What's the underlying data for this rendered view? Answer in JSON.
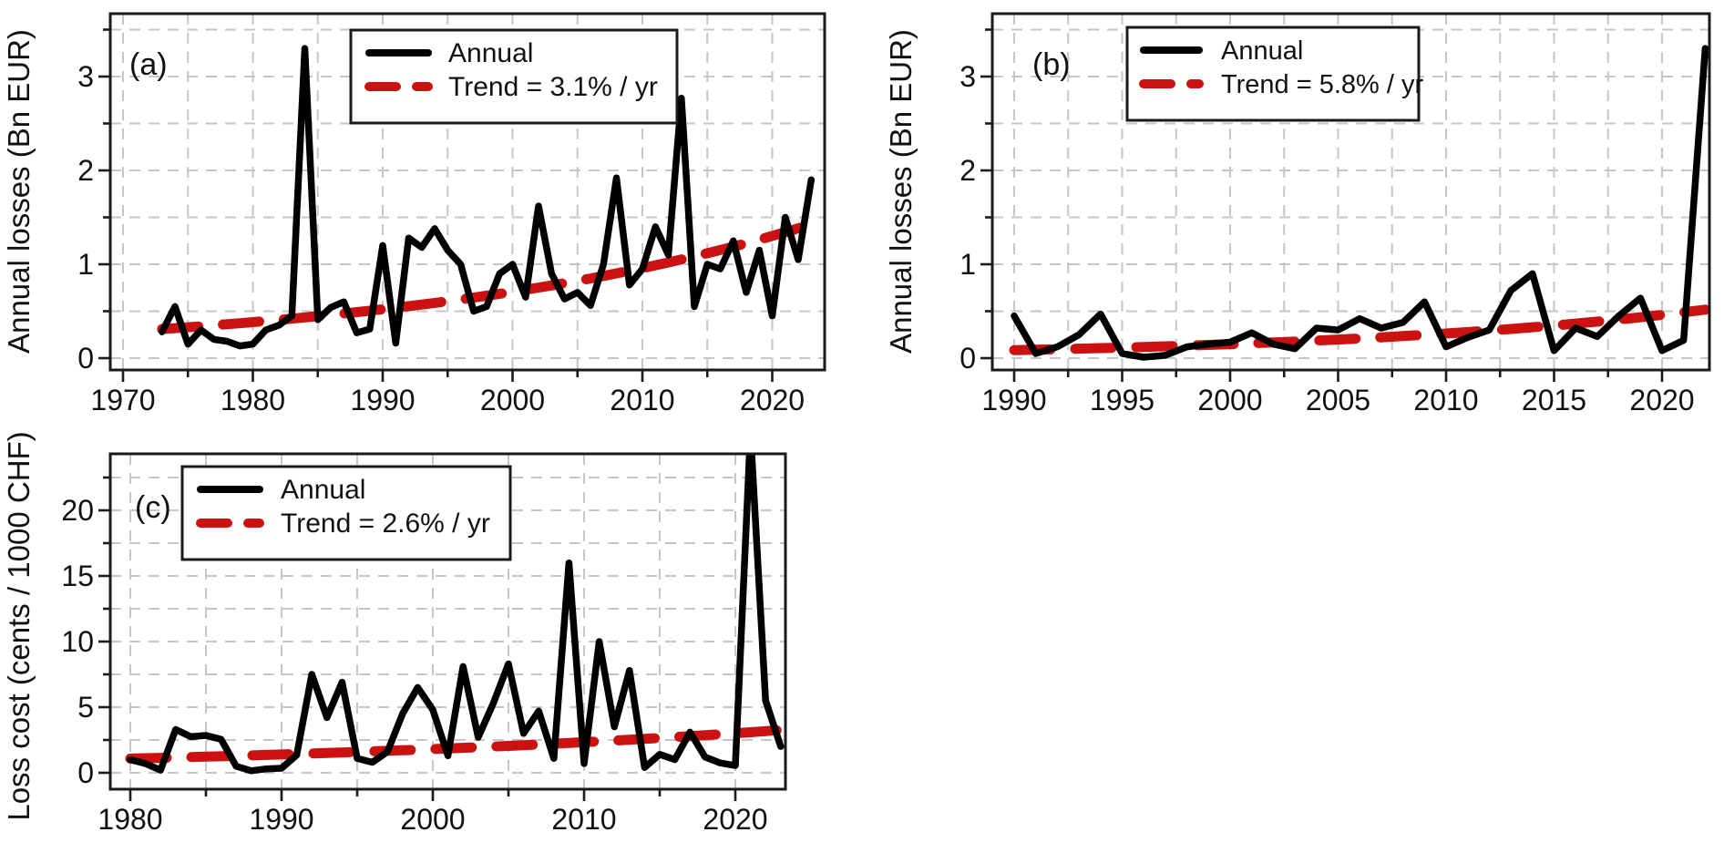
{
  "figure": {
    "description": "Three-panel line figure of annual hail losses with exponential trends",
    "background": "#ffffff"
  },
  "colors": {
    "annual_line": "#000000",
    "trend_line": "#cc1111",
    "grid": "#c6c6c6",
    "axis": "#1a1a1a",
    "legend_bg": "#ffffff",
    "legend_border": "#1a1a1a",
    "text": "#111111"
  },
  "chart_data": [
    {
      "id": "a",
      "type": "line",
      "panel_label": "(a)",
      "ylabel": "Annual losses (Bn EUR)",
      "xlabel": "",
      "legend": {
        "annual": "Annual",
        "trend": "Trend = 3.1% / yr"
      },
      "trend": {
        "rate_pct_per_yr": 3.1,
        "value_start": 0.31,
        "year_start": 1973,
        "year_end": 2023
      },
      "x": [
        1973,
        1974,
        1975,
        1976,
        1977,
        1978,
        1979,
        1980,
        1981,
        1982,
        1983,
        1984,
        1985,
        1986,
        1987,
        1988,
        1989,
        1990,
        1991,
        1992,
        1993,
        1994,
        1995,
        1996,
        1997,
        1998,
        1999,
        2000,
        2001,
        2002,
        2003,
        2004,
        2005,
        2006,
        2007,
        2008,
        2009,
        2010,
        2011,
        2012,
        2013,
        2014,
        2015,
        2016,
        2017,
        2018,
        2019,
        2020,
        2021,
        2022,
        2023
      ],
      "values": [
        0.28,
        0.55,
        0.15,
        0.3,
        0.2,
        0.18,
        0.13,
        0.15,
        0.3,
        0.35,
        0.45,
        3.3,
        0.41,
        0.54,
        0.6,
        0.27,
        0.31,
        1.2,
        0.16,
        1.28,
        1.18,
        1.38,
        1.15,
        1.0,
        0.5,
        0.55,
        0.9,
        1.0,
        0.65,
        1.62,
        0.9,
        0.63,
        0.7,
        0.56,
        1.0,
        1.92,
        0.78,
        0.95,
        1.4,
        1.1,
        2.77,
        0.55,
        1.0,
        0.95,
        1.25,
        0.7,
        1.15,
        0.45,
        1.5,
        1.05,
        1.9
      ],
      "axes": {
        "xlim": [
          1969.0,
          2024.1
        ],
        "ylim": [
          -0.13,
          3.67
        ],
        "xticks_labeled": [
          1970,
          1980,
          1990,
          2000,
          2010,
          2020
        ],
        "xticks_minor": [
          1975,
          1985,
          1995,
          2005,
          2015
        ],
        "yticks_labeled": [
          0,
          1,
          2,
          3
        ],
        "yticks_minor": [
          0.5,
          1.5,
          2.5,
          3.5
        ],
        "grid": true
      }
    },
    {
      "id": "b",
      "type": "line",
      "panel_label": "(b)",
      "ylabel": "Annual losses (Bn EUR)",
      "xlabel": "",
      "legend": {
        "annual": "Annual",
        "trend": "Trend = 5.8% / yr"
      },
      "trend": {
        "rate_pct_per_yr": 5.8,
        "value_start": 0.085,
        "year_start": 1990,
        "year_end": 2022
      },
      "x": [
        1990,
        1991,
        1992,
        1993,
        1994,
        1995,
        1996,
        1997,
        1998,
        1999,
        2000,
        2001,
        2002,
        2003,
        2004,
        2005,
        2006,
        2007,
        2008,
        2009,
        2010,
        2011,
        2012,
        2013,
        2014,
        2015,
        2016,
        2017,
        2018,
        2019,
        2020,
        2021,
        2022
      ],
      "values": [
        0.45,
        0.05,
        0.12,
        0.25,
        0.47,
        0.05,
        0.01,
        0.03,
        0.12,
        0.15,
        0.17,
        0.27,
        0.15,
        0.1,
        0.32,
        0.3,
        0.42,
        0.32,
        0.38,
        0.6,
        0.12,
        0.22,
        0.3,
        0.72,
        0.9,
        0.08,
        0.32,
        0.23,
        0.45,
        0.64,
        0.08,
        0.19,
        3.3
      ],
      "axes": {
        "xlim": [
          1988.99,
          2022.3
        ],
        "ylim": [
          -0.13,
          3.67
        ],
        "xticks_labeled": [
          1990,
          1995,
          2000,
          2005,
          2010,
          2015,
          2020
        ],
        "xticks_minor": [
          1992.5,
          1997.5,
          2002.5,
          2007.5,
          2012.5,
          2017.5
        ],
        "yticks_labeled": [
          0,
          1,
          2,
          3
        ],
        "yticks_minor": [
          0.5,
          1.5,
          2.5,
          3.5
        ],
        "grid": true
      }
    },
    {
      "id": "c",
      "type": "line",
      "panel_label": "(c)",
      "ylabel": "Loss cost (cents / 1000 CHF)",
      "xlabel": "",
      "legend": {
        "annual": "Annual",
        "trend": "Trend = 2.6% / yr"
      },
      "trend": {
        "rate_pct_per_yr": 2.6,
        "value_start": 1.08,
        "year_start": 1980,
        "year_end": 2023
      },
      "x": [
        1980,
        1981,
        1982,
        1983,
        1984,
        1985,
        1986,
        1987,
        1988,
        1989,
        1990,
        1991,
        1992,
        1993,
        1994,
        1995,
        1996,
        1997,
        1998,
        1999,
        2000,
        2001,
        2002,
        2003,
        2004,
        2005,
        2006,
        2007,
        2008,
        2009,
        2010,
        2011,
        2012,
        2013,
        2014,
        2015,
        2016,
        2017,
        2018,
        2019,
        2020,
        2021,
        2022,
        2023
      ],
      "values": [
        1.0,
        0.7,
        0.2,
        3.3,
        2.75,
        2.85,
        2.55,
        0.5,
        0.15,
        0.3,
        0.35,
        1.35,
        7.5,
        4.2,
        6.9,
        1.1,
        0.8,
        1.6,
        4.5,
        6.5,
        4.8,
        1.3,
        8.1,
        2.7,
        5.3,
        8.3,
        3.0,
        4.7,
        1.1,
        16.0,
        0.7,
        10.0,
        3.5,
        7.8,
        0.4,
        1.4,
        1.0,
        3.1,
        1.2,
        0.75,
        0.55,
        26.0,
        5.5,
        2.0
      ],
      "axes": {
        "xlim": [
          1978.67,
          2023.3
        ],
        "ylim": [
          -1.25,
          24.3
        ],
        "xticks_labeled": [
          1980,
          1990,
          2000,
          2010,
          2020
        ],
        "xticks_minor": [
          1985,
          1995,
          2005,
          2015
        ],
        "yticks_labeled": [
          0,
          5,
          10,
          15,
          20
        ],
        "yticks_minor": [
          2.5,
          7.5,
          12.5,
          17.5,
          22.5
        ],
        "grid": true
      }
    }
  ]
}
